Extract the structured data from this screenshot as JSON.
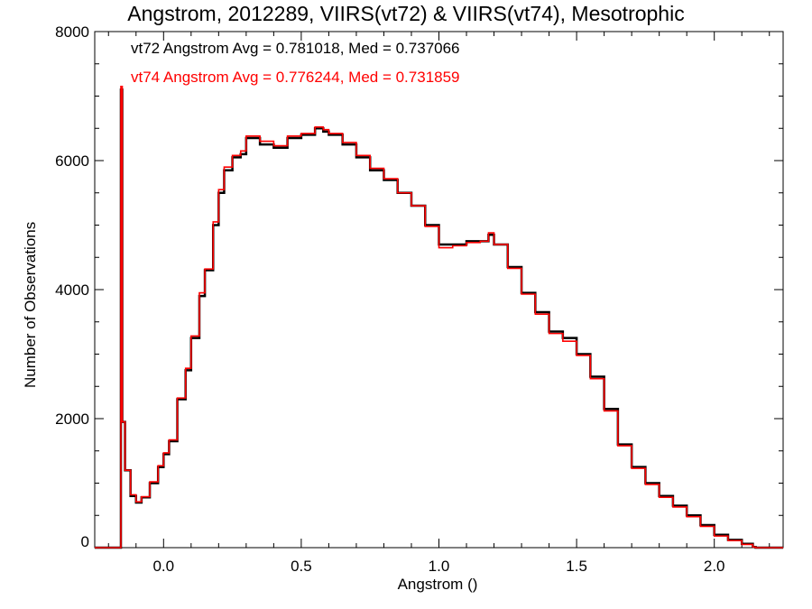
{
  "chart_data": {
    "type": "line",
    "title": "Angstrom, 2012289, VIIRS(vt72) & VIIRS(vt74), Mesotrophic",
    "xlabel": "Angstrom ()",
    "ylabel": "Number of Observations",
    "xlim": [
      -0.25,
      2.25
    ],
    "ylim": [
      0,
      8000
    ],
    "x_ticks": [
      "0.0",
      "0.5",
      "1.0",
      "1.5",
      "2.0"
    ],
    "y_ticks": [
      "0",
      "2000",
      "4000",
      "6000",
      "8000"
    ],
    "annotations": [
      {
        "text": "vt72 Angstrom Avg = 0.781018, Med = 0.737066",
        "color": "#000000"
      },
      {
        "text": "vt74 Angstrom Avg = 0.776244, Med = 0.731859",
        "color": "#ff0000"
      }
    ],
    "grid": false,
    "series": [
      {
        "name": "vt72",
        "color": "#000000",
        "x": [
          -0.25,
          -0.16,
          -0.155,
          -0.15,
          -0.14,
          -0.12,
          -0.1,
          -0.08,
          -0.05,
          -0.02,
          0.0,
          0.02,
          0.05,
          0.08,
          0.1,
          0.13,
          0.15,
          0.18,
          0.2,
          0.22,
          0.25,
          0.28,
          0.3,
          0.35,
          0.4,
          0.45,
          0.5,
          0.55,
          0.58,
          0.6,
          0.65,
          0.7,
          0.75,
          0.8,
          0.85,
          0.9,
          0.95,
          1.0,
          1.05,
          1.1,
          1.15,
          1.18,
          1.2,
          1.25,
          1.3,
          1.35,
          1.4,
          1.45,
          1.5,
          1.55,
          1.6,
          1.65,
          1.7,
          1.75,
          1.8,
          1.85,
          1.9,
          1.95,
          2.0,
          2.05,
          2.1,
          2.14,
          2.15,
          2.25
        ],
        "y": [
          0,
          0,
          7100,
          1950,
          1200,
          800,
          700,
          780,
          1000,
          1250,
          1450,
          1650,
          2300,
          2750,
          3250,
          3900,
          4300,
          5000,
          5500,
          5850,
          6050,
          6100,
          6350,
          6250,
          6200,
          6350,
          6400,
          6500,
          6450,
          6400,
          6250,
          6050,
          5850,
          5700,
          5500,
          5300,
          5000,
          4700,
          4700,
          4750,
          4750,
          4850,
          4700,
          4350,
          3950,
          3650,
          3350,
          3250,
          3000,
          2650,
          2150,
          1600,
          1250,
          1000,
          800,
          650,
          500,
          350,
          200,
          120,
          60,
          10,
          0,
          0
        ]
      },
      {
        "name": "vt74",
        "color": "#ff0000",
        "x": [
          -0.25,
          -0.16,
          -0.155,
          -0.15,
          -0.14,
          -0.12,
          -0.1,
          -0.08,
          -0.05,
          -0.02,
          0.0,
          0.02,
          0.05,
          0.08,
          0.1,
          0.13,
          0.15,
          0.18,
          0.2,
          0.22,
          0.25,
          0.28,
          0.3,
          0.35,
          0.4,
          0.45,
          0.5,
          0.55,
          0.58,
          0.6,
          0.65,
          0.7,
          0.75,
          0.8,
          0.85,
          0.9,
          0.95,
          1.0,
          1.05,
          1.1,
          1.15,
          1.18,
          1.2,
          1.25,
          1.3,
          1.35,
          1.4,
          1.45,
          1.5,
          1.55,
          1.6,
          1.65,
          1.7,
          1.75,
          1.8,
          1.85,
          1.9,
          1.95,
          2.0,
          2.05,
          2.1,
          2.14,
          2.15,
          2.25
        ],
        "y": [
          0,
          0,
          7150,
          1950,
          1200,
          820,
          710,
          790,
          1020,
          1270,
          1470,
          1670,
          2320,
          2780,
          3280,
          3950,
          4320,
          5050,
          5550,
          5900,
          6080,
          6150,
          6380,
          6300,
          6230,
          6380,
          6420,
          6520,
          6480,
          6420,
          6280,
          6080,
          5880,
          5720,
          5500,
          5300,
          4980,
          4650,
          4680,
          4730,
          4750,
          4880,
          4700,
          4330,
          3930,
          3620,
          3320,
          3200,
          2980,
          2620,
          2120,
          1580,
          1230,
          980,
          780,
          630,
          480,
          330,
          180,
          110,
          50,
          10,
          0,
          0
        ]
      }
    ]
  }
}
